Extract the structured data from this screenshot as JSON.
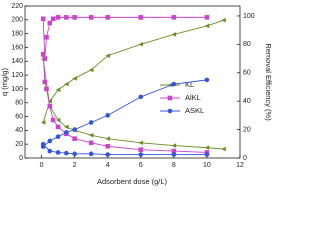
{
  "chart_data": {
    "type": "line",
    "x_label": "Adsorbent dose (g/L)",
    "y_label": "q (mg/g)",
    "y2_label": "Removal Efficiency (%)",
    "xlim": [
      -1,
      12
    ],
    "xticks": [
      0,
      2,
      4,
      6,
      8,
      10,
      12
    ],
    "ylim": [
      0,
      220
    ],
    "yticks": [
      0,
      20,
      40,
      60,
      80,
      100,
      120,
      140,
      160,
      180,
      200,
      220
    ],
    "y2lim": [
      0,
      107
    ],
    "y2ticks": [
      0,
      20,
      40,
      60,
      80,
      100
    ],
    "legend": "right",
    "series": [
      {
        "name": "KL",
        "color": "#6b8e23",
        "marker": "triangle",
        "x": [
          0.1,
          0.5,
          1,
          1.5,
          2,
          3,
          4,
          6,
          8,
          10,
          11
        ],
        "values": [
          143,
          75,
          55,
          45,
          40,
          33,
          28,
          22,
          18,
          15,
          13
        ],
        "y2_values": [
          25,
          40,
          48,
          52,
          56,
          62,
          72,
          80,
          87,
          93,
          97
        ]
      },
      {
        "name": "AlKL",
        "color": "#cc44cc",
        "marker": "square",
        "x": [
          0.1,
          0.2,
          0.3,
          0.5,
          0.7,
          1,
          1.5,
          2,
          3,
          4,
          6,
          8,
          10
        ],
        "values": [
          150,
          110,
          100,
          75,
          55,
          45,
          35,
          28,
          22,
          17,
          12,
          10,
          8
        ],
        "y2_values": [
          98,
          70,
          85,
          95,
          98,
          99,
          99,
          99,
          99,
          99,
          99,
          99,
          99
        ]
      },
      {
        "name": "ASKL",
        "color": "#3355dd",
        "marker": "circle",
        "x": [
          0.1,
          0.5,
          1,
          1.5,
          2,
          3,
          4,
          6,
          8,
          10
        ],
        "values": [
          20,
          10,
          8,
          7,
          6,
          6,
          5,
          5,
          5,
          5
        ],
        "y2_values": [
          8,
          12,
          15,
          18,
          20,
          25,
          30,
          43,
          52,
          55
        ]
      }
    ]
  }
}
